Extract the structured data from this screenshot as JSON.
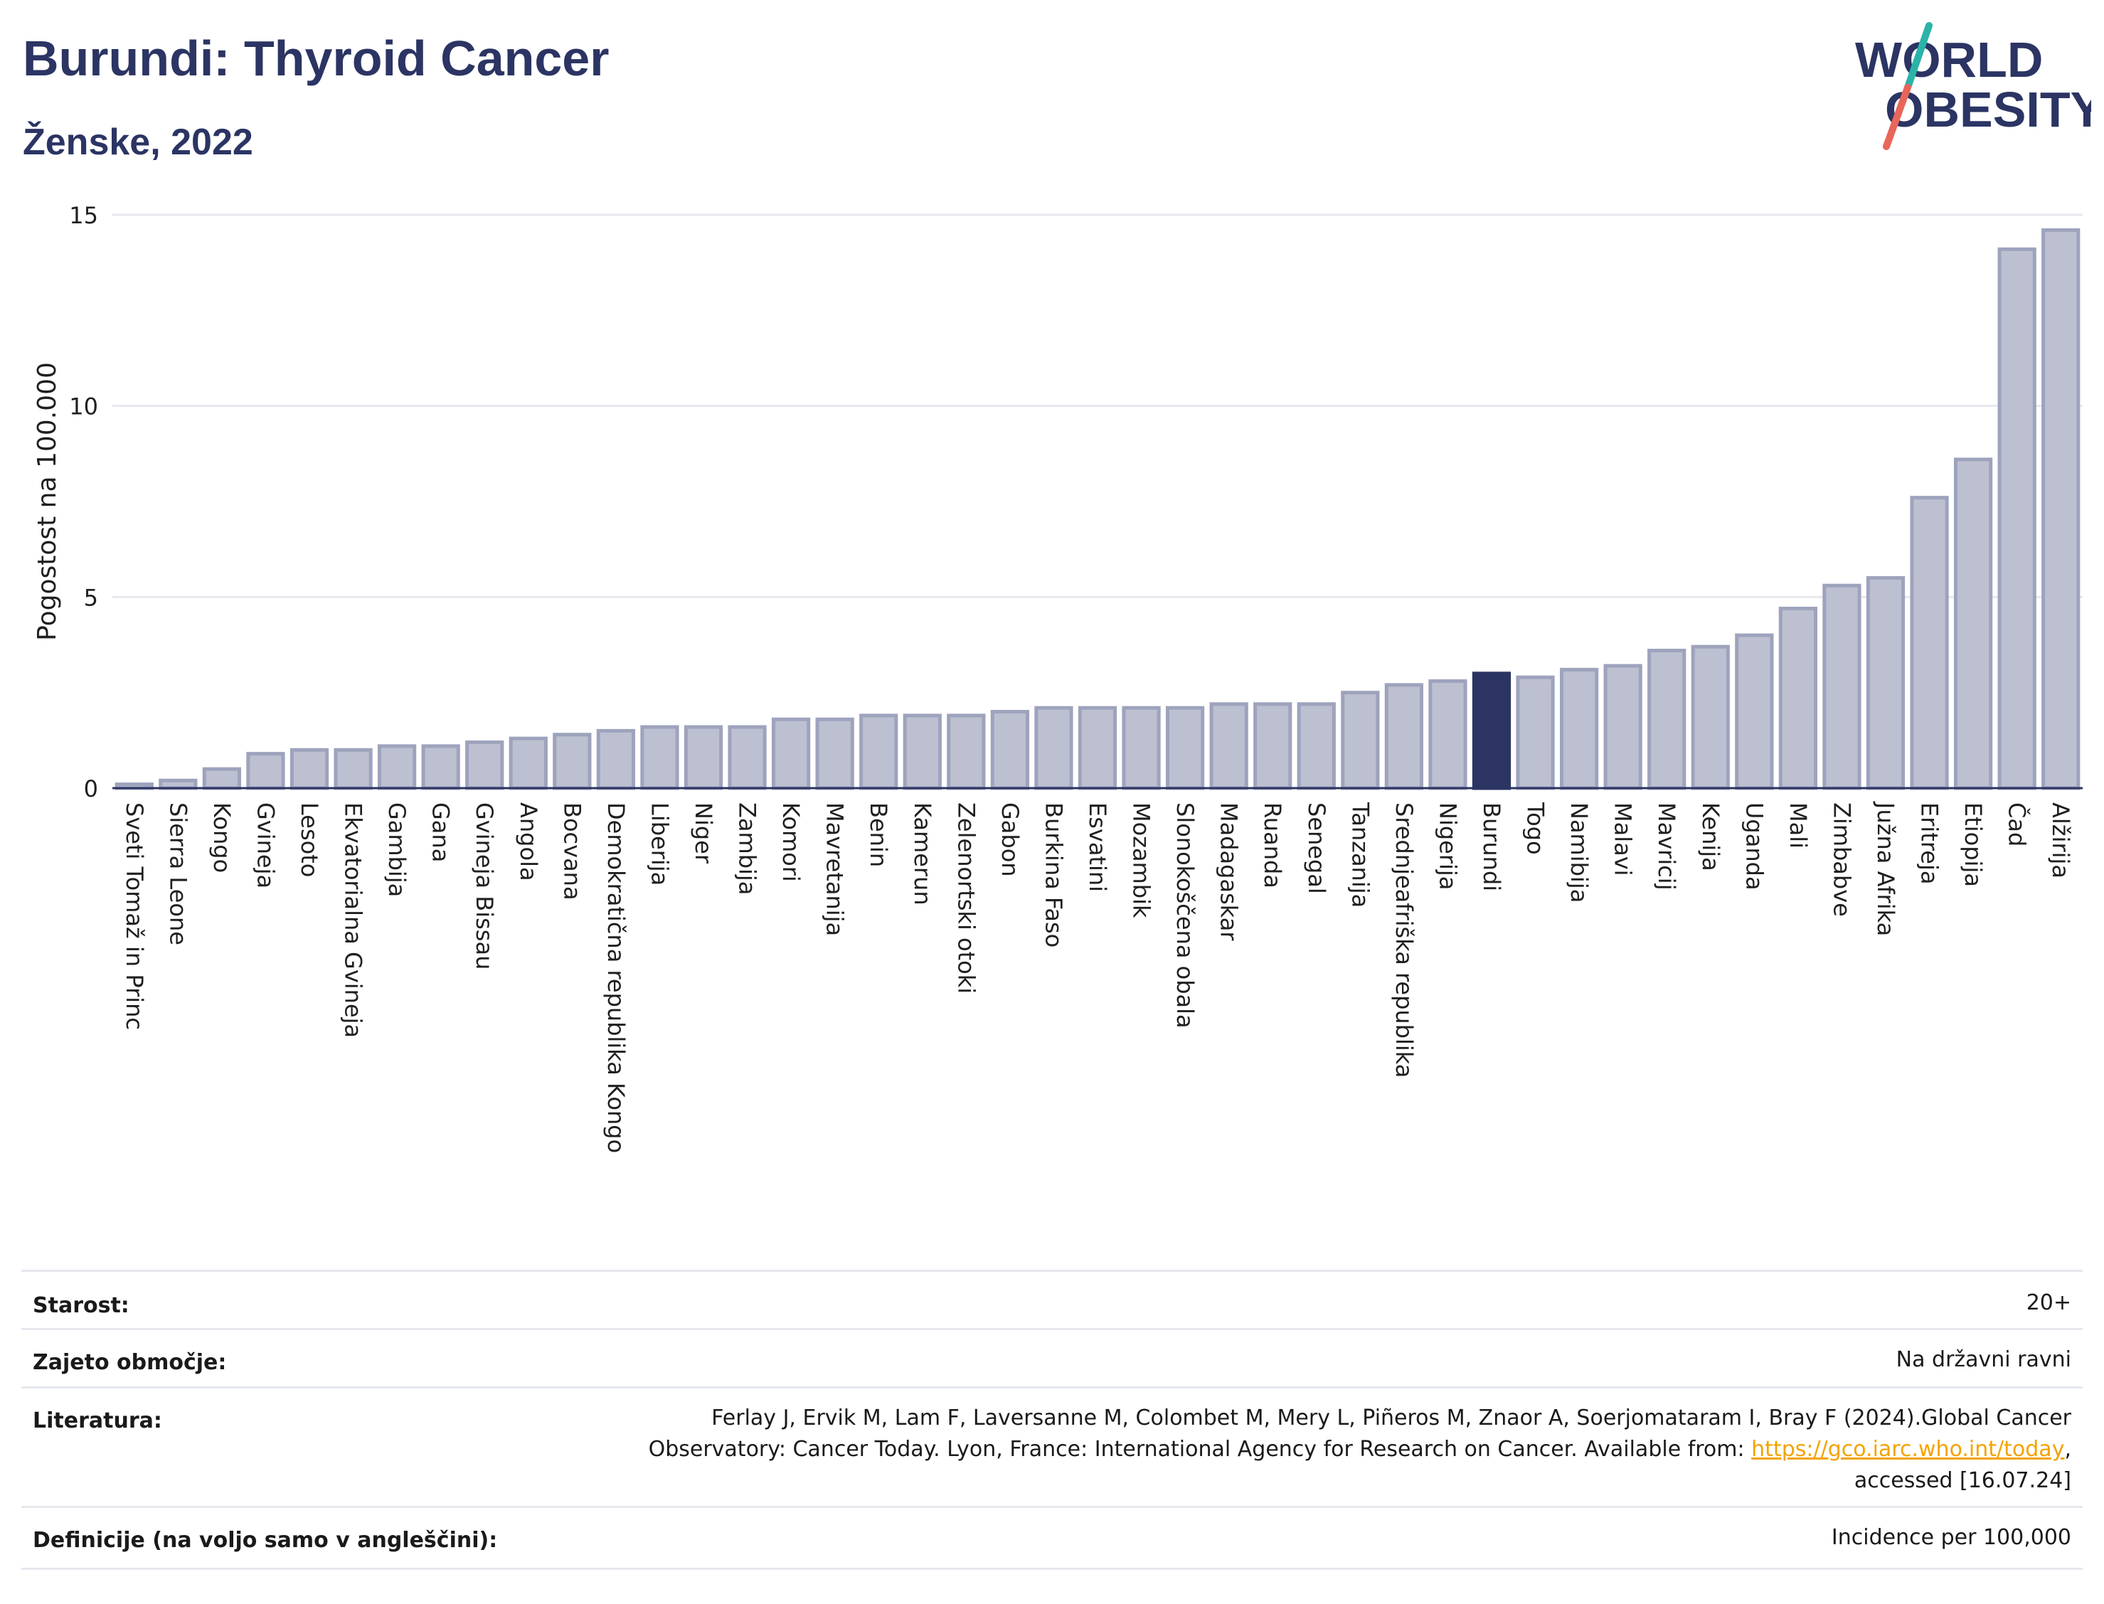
{
  "title": "Burundi: Thyroid Cancer",
  "subtitle": "Ženske, 2022",
  "logo": {
    "line1": "WORLD",
    "line2": "OBESITY",
    "text_color": "#2b3463",
    "slash_top": "#2bb3a8",
    "slash_bottom": "#e8665a"
  },
  "colors": {
    "bar": "#bcc0d0",
    "bar_stroke": "#9ea3bd",
    "highlight": "#2b3463",
    "grid": "#e6e8ef",
    "axis": "#2b3463"
  },
  "chart_data": {
    "type": "bar",
    "title": "Burundi: Thyroid Cancer",
    "subtitle": "Ženske, 2022",
    "xlabel": "",
    "ylabel": "Pogostost na 100.000",
    "ylim": [
      0,
      15
    ],
    "yticks": [
      0,
      5,
      10,
      15
    ],
    "grid": true,
    "highlight": "Burundi",
    "categories": [
      "Sveti Tomaž in Princ",
      "Sierra Leone",
      "Kongo",
      "Gvineja",
      "Lesoto",
      "Ekvatorialna Gvineja",
      "Gambija",
      "Gana",
      "Gvineja Bissau",
      "Angola",
      "Bocvana",
      "Demokratična republika Kongo",
      "Liberija",
      "Niger",
      "Zambija",
      "Komori",
      "Mavretanija",
      "Benin",
      "Kamerun",
      "Zelenortski otoki",
      "Gabon",
      "Burkina Faso",
      "Esvatini",
      "Mozambik",
      "Slonokoščena obala",
      "Madagaskar",
      "Ruanda",
      "Senegal",
      "Tanzanija",
      "Srednjeafriška republika",
      "Nigerija",
      "Burundi",
      "Togo",
      "Namibija",
      "Malavi",
      "Mavricij",
      "Kenija",
      "Uganda",
      "Mali",
      "Zimbabve",
      "Južna Afrika",
      "Eritreja",
      "Etiopija",
      "Čad",
      "Alžirija"
    ],
    "values": [
      0.1,
      0.2,
      0.5,
      0.9,
      1.0,
      1.0,
      1.1,
      1.1,
      1.2,
      1.3,
      1.4,
      1.5,
      1.6,
      1.6,
      1.6,
      1.8,
      1.8,
      1.9,
      1.9,
      1.9,
      2.0,
      2.1,
      2.1,
      2.1,
      2.1,
      2.2,
      2.2,
      2.2,
      2.5,
      2.7,
      2.8,
      3.0,
      2.9,
      3.1,
      3.2,
      3.6,
      3.7,
      4.0,
      4.7,
      5.3,
      5.5,
      7.6,
      8.6,
      14.1,
      14.6
    ]
  },
  "info": {
    "age_label": "Starost:",
    "age_value": "20+",
    "coverage_label": "Zajeto območje:",
    "coverage_value": "Na državni ravni",
    "reference_label": "Literatura:",
    "reference_line1": "Ferlay J, Ervik M, Lam F, Laversanne M, Colombet M, Mery L, Piñeros M, Znaor A, Soerjomataram I, Bray F (2024).Global Cancer",
    "reference_line2": "Observatory: Cancer Today. Lyon, France: International Agency for Research on Cancer. Available from: ",
    "reference_link": "https://gco.iarc.who.int/today",
    "reference_line2_end": ",",
    "reference_line3": "accessed [16.07.24]",
    "definitions_label": "Definicije (na voljo samo v angleščini):",
    "definitions_value": "Incidence per 100,000"
  }
}
